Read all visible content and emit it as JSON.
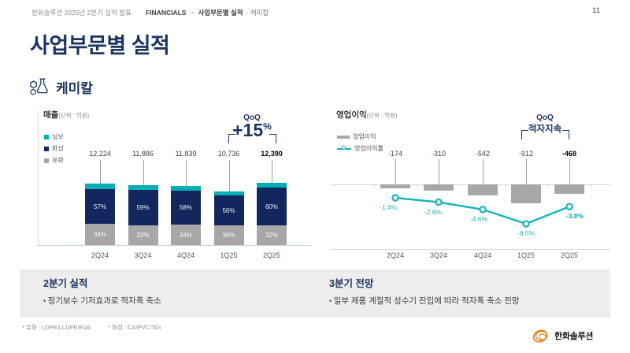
{
  "header": {
    "deck_title": "한화솔루션 2025년 2분기 실적 발표",
    "breadcrumb": {
      "section": "FINANCIALS",
      "separator": ">",
      "group": "사업부문별 실적",
      "leaf": "- 케미칼"
    },
    "page_number": "11"
  },
  "title": "사업부문별 실적",
  "segment": {
    "label": "케미칼"
  },
  "chart_data": [
    {
      "type": "bar",
      "stacked": true,
      "title": "매출",
      "unit_label": "(단위 : 억원)",
      "categories": [
        "2Q24",
        "3Q24",
        "4Q24",
        "1Q25",
        "2Q25"
      ],
      "totals": [
        12224,
        11886,
        11839,
        10736,
        12390
      ],
      "total_labels": [
        "12,224",
        "11,886",
        "11,839",
        "10,736",
        "12,390"
      ],
      "series": [
        {
          "name": "유화",
          "color": "#a7a7a7",
          "show_labels": true,
          "share_pct": [
            34,
            33,
            34,
            36,
            32
          ]
        },
        {
          "name": "화성",
          "color": "#13265e",
          "show_labels": true,
          "share_pct": [
            57,
            59,
            58,
            56,
            60
          ]
        },
        {
          "name": "닝보",
          "color": "#00afb5",
          "show_labels": false,
          "share_pct": [
            9,
            8,
            8,
            8,
            8
          ]
        }
      ],
      "legend_position": "left",
      "ylim": [
        0,
        13000
      ],
      "qoq": {
        "label": "QoQ",
        "value": "+15",
        "suffix": "%"
      }
    },
    {
      "type": "bar+line",
      "title": "영업이익",
      "unit_label": "(단위 : 억원)",
      "categories": [
        "2Q24",
        "3Q24",
        "4Q24",
        "1Q25",
        "2Q25"
      ],
      "series": [
        {
          "name": "영업이익",
          "type": "bar",
          "color": "#a7a7a7",
          "values": [
            -174,
            -310,
            -542,
            -912,
            -468
          ],
          "labels": [
            "-174",
            "-310",
            "-542",
            "-912",
            "-468"
          ]
        },
        {
          "name": "영업이익률",
          "type": "line",
          "color": "#14b5b4",
          "values": [
            -1.4,
            -2.6,
            -4.6,
            -8.5,
            -3.8
          ],
          "labels": [
            "-1.4%",
            "-2.6%",
            "-4.6%",
            "-8.5%",
            "-3.8%"
          ]
        }
      ],
      "legend_position": "left",
      "qoq": {
        "label": "QoQ",
        "value": "적자지속"
      }
    }
  ],
  "commentary": {
    "left": {
      "heading": "2분기 실적",
      "bullets": [
        "정기보수 기저효과로 적자폭 축소"
      ]
    },
    "right": {
      "heading": "3분기 전망",
      "bullets": [
        "일부 제품 계절적 성수기 진입에 따라 적자폭 축소 전망"
      ]
    }
  },
  "footnotes": [
    "* 유화 : LDPE/LLDPE/EVA",
    "* 화성 : CA/PVC/TDI"
  ],
  "logo_text": "한화솔루션",
  "colors": {
    "navy": "#13265e",
    "teal": "#00afb5",
    "gray": "#a7a7a7",
    "accent_text": "#1c3461",
    "band": "#ededed",
    "logo_orange": "#ef7c1b"
  }
}
